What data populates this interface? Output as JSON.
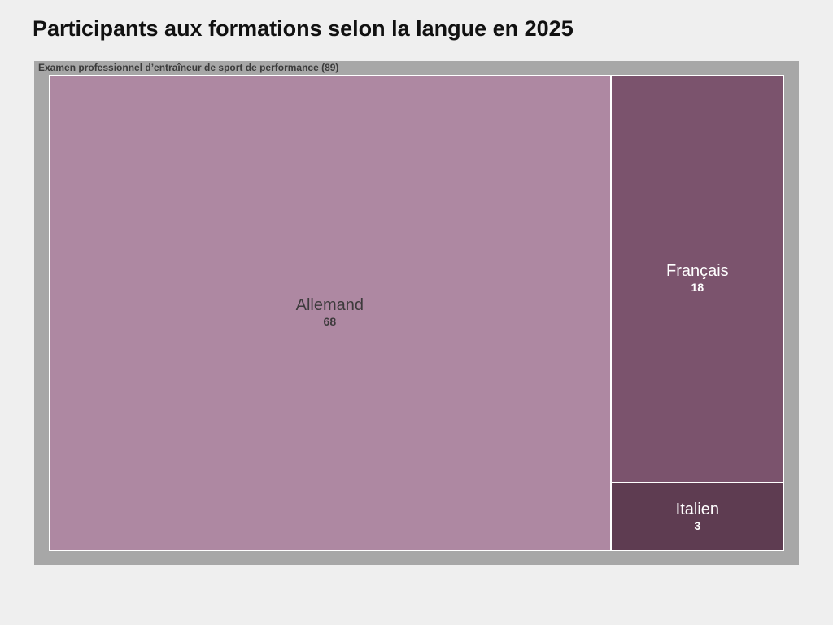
{
  "title": "Participants aux formations selon la langue en 2025",
  "chart_data": {
    "type": "treemap",
    "title": "Participants aux formations selon la langue en 2025",
    "group": {
      "label": "Examen professionnel d’entraîneur de sport de performance (89)",
      "name": "Examen professionnel d’entraîneur de sport de performance",
      "total": 89
    },
    "items": [
      {
        "name": "Allemand",
        "value": 68,
        "color": "#ae88a2",
        "text_color": "#3d3a3c"
      },
      {
        "name": "Français",
        "value": 18,
        "color": "#7b536d",
        "text_color": "#ffffff"
      },
      {
        "name": "Italien",
        "value": 3,
        "color": "#5e3c51",
        "text_color": "#ffffff"
      }
    ]
  },
  "colors": {
    "page_background": "#efefef",
    "frame": "#a7a7a7",
    "tile_border": "#ffffff"
  }
}
